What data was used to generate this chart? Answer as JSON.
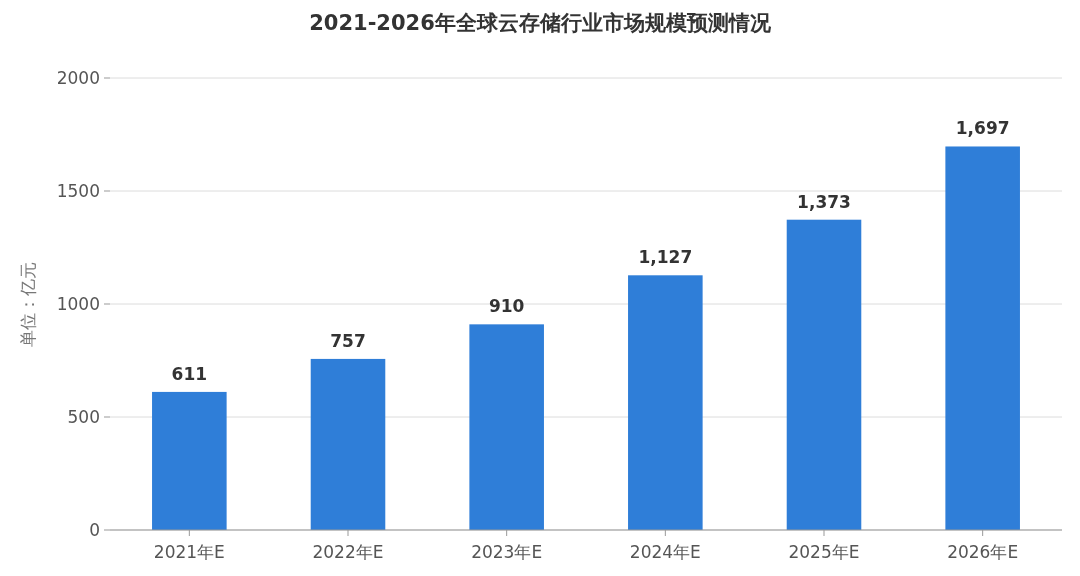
{
  "chart_data": {
    "type": "bar",
    "title": "2021-2026年全球云存储行业市场规模预测情况",
    "ylabel": "单位：亿元",
    "categories": [
      "2021年E",
      "2022年E",
      "2023年E",
      "2024年E",
      "2025年E",
      "2026年E"
    ],
    "values": [
      611,
      757,
      910,
      1127,
      1373,
      1697
    ],
    "value_labels": [
      "611",
      "757",
      "910",
      "1,127",
      "1,373",
      "1,697"
    ],
    "color": "#2f7ed8",
    "ylim": [
      0,
      2000
    ],
    "yticks": [
      0,
      500,
      1000,
      1500,
      2000
    ],
    "grid": "y"
  }
}
